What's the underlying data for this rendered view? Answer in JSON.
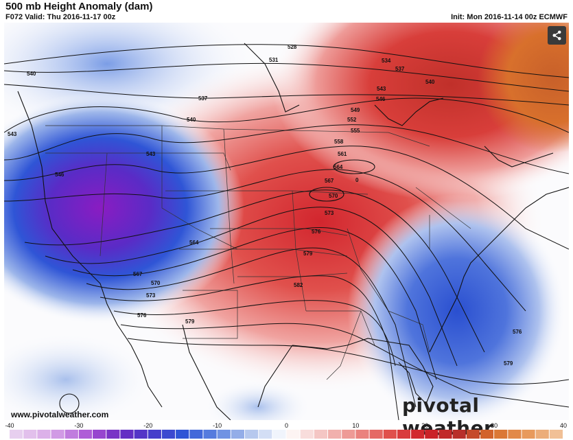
{
  "header": {
    "title": "500 mb Height Anomaly (dam)",
    "valid": "F072 Valid: Thu 2016-11-17 00z",
    "init": "Init: Mon 2016-11-14 00z ECMWF"
  },
  "map": {
    "contour_labels": [
      "528",
      "531",
      "534",
      "537",
      "540",
      "543",
      "546",
      "549",
      "552",
      "555",
      "558",
      "561",
      "564",
      "567",
      "570",
      "573",
      "576",
      "579",
      "582"
    ],
    "anomaly_centers": [
      {
        "name": "western trough",
        "value": -30,
        "color": "#8a1cc2"
      },
      {
        "name": "central ridge",
        "value": 22,
        "color": "#d2262e"
      },
      {
        "name": "east coast low",
        "value": -18,
        "color": "#2a4fd0"
      },
      {
        "name": "northeast ridge",
        "value": 28,
        "color": "#c0302a"
      }
    ]
  },
  "share": {
    "icon": "share-icon"
  },
  "watermark": "pivotal weather",
  "website": "www.pivotalweather.com",
  "colorbar": {
    "ticks": [
      "-40",
      "-30",
      "-20",
      "-10",
      "0",
      "10",
      "20",
      "30",
      "40"
    ],
    "min": -40,
    "max": 40,
    "stops": [
      {
        "v": -40,
        "c": "#ead7f0"
      },
      {
        "v": -34,
        "c": "#d9a9e8"
      },
      {
        "v": -28,
        "c": "#a64ed3"
      },
      {
        "v": -24,
        "c": "#6a2bc2"
      },
      {
        "v": -20,
        "c": "#4c38c8"
      },
      {
        "v": -15,
        "c": "#2f55d6"
      },
      {
        "v": -10,
        "c": "#5f84e0"
      },
      {
        "v": -5,
        "c": "#b6c8ee"
      },
      {
        "v": 0,
        "c": "#ffffff"
      },
      {
        "v": 5,
        "c": "#f4c6c4"
      },
      {
        "v": 10,
        "c": "#ec8f8b"
      },
      {
        "v": 15,
        "c": "#e0504c"
      },
      {
        "v": 20,
        "c": "#cf1f27"
      },
      {
        "v": 25,
        "c": "#b8302b"
      },
      {
        "v": 30,
        "c": "#d8702c"
      },
      {
        "v": 35,
        "c": "#e89a5c"
      },
      {
        "v": 40,
        "c": "#f3c9a4"
      }
    ]
  }
}
